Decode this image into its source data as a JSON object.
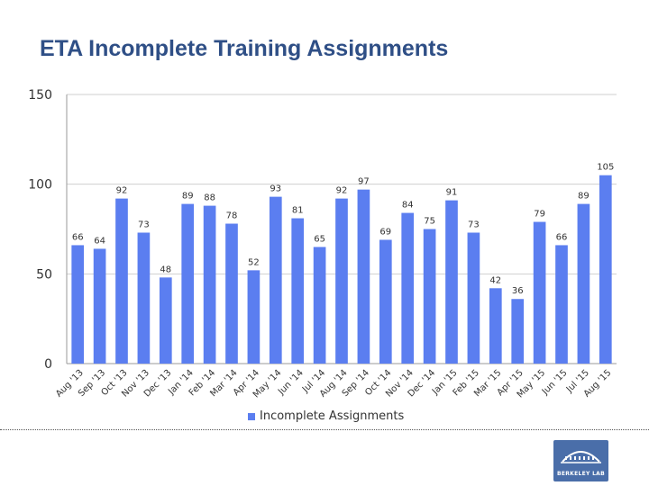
{
  "title": "ETA Incomplete Training Assignments",
  "logo": {
    "text": "BERKELEY LAB",
    "icon": "building-dome-icon"
  },
  "chart_data": {
    "type": "bar",
    "title": "ETA Incomplete Training Assignments",
    "xlabel": "",
    "ylabel": "",
    "ylim": [
      0,
      150
    ],
    "yticks": [
      0,
      50,
      100,
      150
    ],
    "grid": true,
    "legend_position": "bottom",
    "bar_color": "#5b7ef0",
    "categories": [
      "Aug '13",
      "Sep '13",
      "Oct '13",
      "Nov '13",
      "Dec '13",
      "Jan '14",
      "Feb '14",
      "Mar '14",
      "Apr '14",
      "May '14",
      "Jun '14",
      "Jul '14",
      "Aug '14",
      "Sep '14",
      "Oct '14",
      "Nov '14",
      "Dec '14",
      "Jan '15",
      "Feb '15",
      "Mar '15",
      "Apr '15",
      "May '15",
      "Jun '15",
      "Jul '15",
      "Aug '15"
    ],
    "series": [
      {
        "name": "Incomplete Assignments",
        "values": [
          66,
          64,
          92,
          73,
          48,
          89,
          88,
          78,
          52,
          93,
          81,
          65,
          92,
          97,
          69,
          84,
          75,
          91,
          73,
          42,
          36,
          79,
          66,
          89,
          105
        ]
      }
    ]
  }
}
